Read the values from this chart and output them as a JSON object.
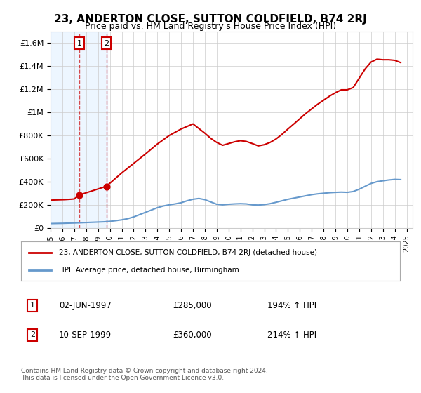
{
  "title": "23, ANDERTON CLOSE, SUTTON COLDFIELD, B74 2RJ",
  "subtitle": "Price paid vs. HM Land Registry's House Price Index (HPI)",
  "property_label": "23, ANDERTON CLOSE, SUTTON COLDFIELD, B74 2RJ (detached house)",
  "hpi_label": "HPI: Average price, detached house, Birmingham",
  "transaction1_label": "1",
  "transaction1_date": "02-JUN-1997",
  "transaction1_price": "£285,000",
  "transaction1_hpi": "194% ↑ HPI",
  "transaction2_label": "2",
  "transaction2_date": "10-SEP-1999",
  "transaction2_price": "£360,000",
  "transaction2_hpi": "214% ↑ HPI",
  "footer": "Contains HM Land Registry data © Crown copyright and database right 2024.\nThis data is licensed under the Open Government Licence v3.0.",
  "property_color": "#cc0000",
  "hpi_color": "#6699cc",
  "background_color": "#ffffff",
  "grid_color": "#cccccc",
  "highlight_color": "#ddeeff",
  "ylim": [
    0,
    1700000
  ],
  "yticks": [
    0,
    200000,
    400000,
    600000,
    800000,
    1000000,
    1200000,
    1400000,
    1600000
  ],
  "ytick_labels": [
    "£0",
    "£200K",
    "£400K",
    "£600K",
    "£800K",
    "£1M",
    "£1.2M",
    "£1.4M",
    "£1.6M"
  ],
  "xlim_start": 1995.0,
  "xlim_end": 2025.5,
  "transaction1_x": 1997.42,
  "transaction1_y": 285000,
  "transaction2_x": 1999.7,
  "transaction2_y": 360000,
  "hpi_years": [
    1995.0,
    1995.5,
    1996.0,
    1996.5,
    1997.0,
    1997.5,
    1998.0,
    1998.5,
    1999.0,
    1999.5,
    2000.0,
    2000.5,
    2001.0,
    2001.5,
    2002.0,
    2002.5,
    2003.0,
    2003.5,
    2004.0,
    2004.5,
    2005.0,
    2005.5,
    2006.0,
    2006.5,
    2007.0,
    2007.5,
    2008.0,
    2008.5,
    2009.0,
    2009.5,
    2010.0,
    2010.5,
    2011.0,
    2011.5,
    2012.0,
    2012.5,
    2013.0,
    2013.5,
    2014.0,
    2014.5,
    2015.0,
    2015.5,
    2016.0,
    2016.5,
    2017.0,
    2017.5,
    2018.0,
    2018.5,
    2019.0,
    2019.5,
    2020.0,
    2020.5,
    2021.0,
    2021.5,
    2022.0,
    2022.5,
    2023.0,
    2023.5,
    2024.0,
    2024.5
  ],
  "hpi_values": [
    38000,
    39000,
    40000,
    41500,
    43000,
    45000,
    47000,
    49000,
    51000,
    53000,
    57000,
    63000,
    70000,
    80000,
    95000,
    115000,
    135000,
    155000,
    175000,
    190000,
    200000,
    208000,
    218000,
    235000,
    248000,
    255000,
    245000,
    225000,
    205000,
    200000,
    205000,
    208000,
    210000,
    208000,
    200000,
    198000,
    202000,
    210000,
    222000,
    235000,
    248000,
    258000,
    268000,
    278000,
    288000,
    295000,
    300000,
    305000,
    308000,
    310000,
    308000,
    315000,
    335000,
    360000,
    385000,
    400000,
    408000,
    415000,
    420000,
    418000
  ],
  "property_years": [
    1995.0,
    1995.3,
    1995.6,
    1995.9,
    1996.2,
    1996.5,
    1996.8,
    1997.0,
    1997.42,
    1999.7,
    2001.0,
    2002.0,
    2003.0,
    2004.0,
    2005.0,
    2006.0,
    2006.5,
    2007.0,
    2007.5,
    2008.0,
    2008.5,
    2009.0,
    2009.5,
    2010.0,
    2010.5,
    2011.0,
    2011.5,
    2012.0,
    2012.5,
    2013.0,
    2013.5,
    2014.0,
    2014.5,
    2015.0,
    2015.5,
    2016.0,
    2016.5,
    2017.0,
    2017.5,
    2018.0,
    2018.5,
    2019.0,
    2019.5,
    2020.0,
    2020.5,
    2021.0,
    2021.5,
    2022.0,
    2022.5,
    2023.0,
    2023.5,
    2024.0,
    2024.5
  ],
  "property_values": [
    240000,
    242000,
    243000,
    244000,
    245000,
    247000,
    249000,
    251000,
    285000,
    360000,
    476000,
    558000,
    640000,
    726000,
    800000,
    856000,
    878000,
    900000,
    860000,
    820000,
    775000,
    740000,
    715000,
    730000,
    745000,
    755000,
    748000,
    730000,
    710000,
    720000,
    740000,
    770000,
    810000,
    856000,
    900000,
    945000,
    990000,
    1030000,
    1070000,
    1105000,
    1140000,
    1170000,
    1195000,
    1195000,
    1215000,
    1295000,
    1375000,
    1435000,
    1460000,
    1455000,
    1455000,
    1450000,
    1430000
  ]
}
